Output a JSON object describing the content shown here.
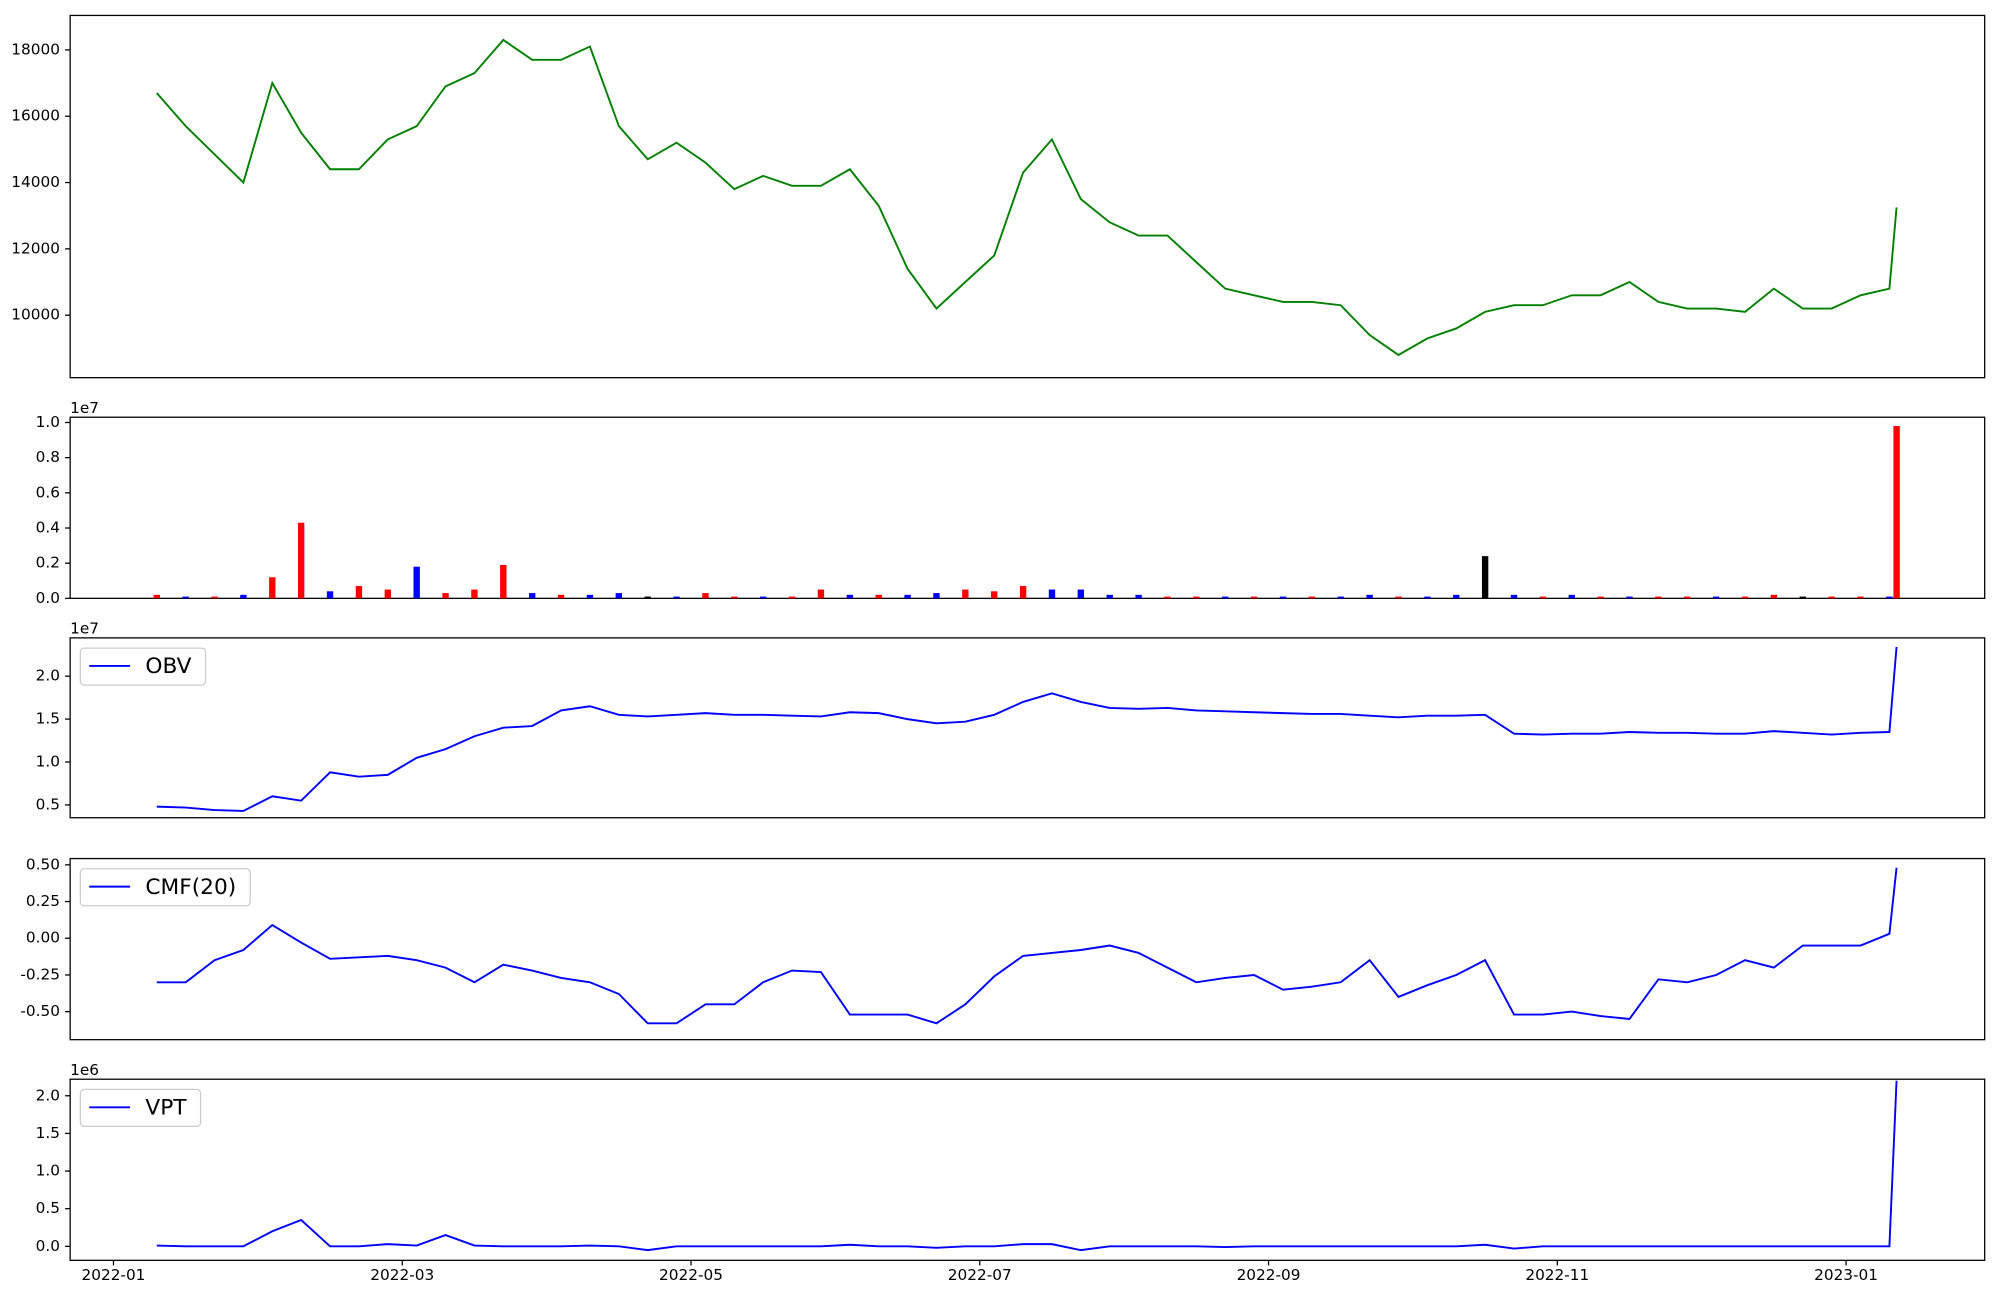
{
  "chart_data": [
    {
      "type": "line",
      "x": [
        0.3,
        0.5,
        0.7,
        0.9,
        1.1,
        1.3,
        1.5,
        1.7,
        1.9,
        2.1,
        2.3,
        2.5,
        2.7,
        2.9,
        3.1,
        3.3,
        3.5,
        3.7,
        3.9,
        4.1,
        4.3,
        4.5,
        4.7,
        4.9,
        5.1,
        5.3,
        5.5,
        5.7,
        5.9,
        6.1,
        6.3,
        6.5,
        6.7,
        6.9,
        7.1,
        7.3,
        7.5,
        7.7,
        7.9,
        8.1,
        8.3,
        8.5,
        8.7,
        8.9,
        9.1,
        9.3,
        9.5,
        9.7,
        9.9,
        10.1,
        10.3,
        10.5,
        10.7,
        10.9,
        11.1,
        11.3,
        11.5,
        11.7,
        11.9,
        12.1,
        12.3,
        12.35
      ],
      "values": [
        16700,
        15700,
        14850,
        14000,
        17000,
        15500,
        14400,
        14400,
        15300,
        15700,
        16900,
        17300,
        18300,
        17700,
        17700,
        18100,
        15700,
        14700,
        15200,
        14600,
        13800,
        14200,
        13900,
        13900,
        14400,
        13300,
        11400,
        10200,
        11000,
        11800,
        14300,
        15300,
        13500,
        12800,
        12400,
        12400,
        11600,
        10800,
        10600,
        10400,
        10400,
        10300,
        9400,
        8800,
        9300,
        9600,
        10100,
        10300,
        10300,
        10600,
        10600,
        11000,
        10400,
        10200,
        10200,
        10100,
        10800,
        10200,
        10200,
        10600,
        10800,
        13250
      ],
      "color": "green",
      "xlim": [
        -0.3,
        12.96
      ],
      "ylim": [
        8115,
        19040
      ],
      "yticks": [
        10000,
        12000,
        14000,
        16000,
        18000
      ]
    },
    {
      "type": "bar",
      "x": [
        0.3,
        0.5,
        0.7,
        0.9,
        1.1,
        1.3,
        1.5,
        1.7,
        1.9,
        2.1,
        2.3,
        2.5,
        2.7,
        2.9,
        3.1,
        3.3,
        3.5,
        3.7,
        3.9,
        4.1,
        4.3,
        4.5,
        4.7,
        4.9,
        5.1,
        5.3,
        5.5,
        5.7,
        5.9,
        6.1,
        6.3,
        6.5,
        6.7,
        6.9,
        7.1,
        7.3,
        7.5,
        7.7,
        7.9,
        8.1,
        8.3,
        8.5,
        8.7,
        8.9,
        9.1,
        9.3,
        9.5,
        9.7,
        9.9,
        10.1,
        10.3,
        10.5,
        10.7,
        10.9,
        11.1,
        11.3,
        11.5,
        11.7,
        11.9,
        12.1,
        12.3,
        12.35
      ],
      "values": [
        0.02,
        0.01,
        0.01,
        0.02,
        0.12,
        0.43,
        0.04,
        0.07,
        0.05,
        0.18,
        0.03,
        0.05,
        0.19,
        0.03,
        0.02,
        0.02,
        0.03,
        0.01,
        0.01,
        0.03,
        0.01,
        0.01,
        0.01,
        0.05,
        0.02,
        0.02,
        0.02,
        0.03,
        0.05,
        0.04,
        0.07,
        0.05,
        0.05,
        0.02,
        0.02,
        0.01,
        0.01,
        0.01,
        0.01,
        0.01,
        0.01,
        0.01,
        0.02,
        0.01,
        0.01,
        0.02,
        0.24,
        0.02,
        0.01,
        0.02,
        0.01,
        0.01,
        0.01,
        0.01,
        0.01,
        0.01,
        0.02,
        0.01,
        0.01,
        0.01,
        0.01,
        0.98
      ],
      "colors": [
        "red",
        "blue",
        "red",
        "blue",
        "red",
        "red",
        "blue",
        "red",
        "red",
        "blue",
        "red",
        "red",
        "red",
        "blue",
        "red",
        "blue",
        "blue",
        "black",
        "blue",
        "red",
        "red",
        "blue",
        "red",
        "red",
        "blue",
        "red",
        "blue",
        "blue",
        "red",
        "red",
        "red",
        "blue",
        "blue",
        "blue",
        "blue",
        "red",
        "red",
        "blue",
        "red",
        "blue",
        "red",
        "blue",
        "blue",
        "red",
        "blue",
        "blue",
        "black",
        "blue",
        "red",
        "blue",
        "red",
        "blue",
        "red",
        "red",
        "blue",
        "red",
        "red",
        "black",
        "red",
        "red",
        "blue",
        "red"
      ],
      "offset_label": "1e7",
      "xlim": [
        -0.3,
        12.96
      ],
      "ylim": [
        0,
        1.03
      ],
      "yticks": [
        {
          "value": 0,
          "label": "0.0"
        },
        {
          "value": 0.2,
          "label": "0.2"
        },
        {
          "value": 0.4,
          "label": "0.4"
        },
        {
          "value": 0.6,
          "label": "0.6"
        },
        {
          "value": 0.8,
          "label": "0.8"
        },
        {
          "value": 1,
          "label": "1.0"
        }
      ]
    },
    {
      "type": "line",
      "x": [
        0.3,
        0.5,
        0.7,
        0.9,
        1.1,
        1.3,
        1.5,
        1.7,
        1.9,
        2.1,
        2.3,
        2.5,
        2.7,
        2.9,
        3.1,
        3.3,
        3.5,
        3.7,
        3.9,
        4.1,
        4.3,
        4.5,
        4.7,
        4.9,
        5.1,
        5.3,
        5.5,
        5.7,
        5.9,
        6.1,
        6.3,
        6.5,
        6.7,
        6.9,
        7.1,
        7.3,
        7.5,
        7.7,
        7.9,
        8.1,
        8.3,
        8.5,
        8.7,
        8.9,
        9.1,
        9.3,
        9.5,
        9.7,
        9.9,
        10.1,
        10.3,
        10.5,
        10.7,
        10.9,
        11.1,
        11.3,
        11.5,
        11.7,
        11.9,
        12.1,
        12.3,
        12.35
      ],
      "series": [
        {
          "name": "OBV",
          "color": "blue",
          "values": [
            0.48,
            0.47,
            0.44,
            0.43,
            0.6,
            0.55,
            0.88,
            0.83,
            0.85,
            1.05,
            1.15,
            1.3,
            1.4,
            1.42,
            1.6,
            1.65,
            1.55,
            1.53,
            1.55,
            1.57,
            1.55,
            1.55,
            1.54,
            1.53,
            1.58,
            1.57,
            1.5,
            1.45,
            1.47,
            1.55,
            1.7,
            1.8,
            1.7,
            1.63,
            1.62,
            1.63,
            1.6,
            1.59,
            1.58,
            1.57,
            1.56,
            1.56,
            1.54,
            1.52,
            1.54,
            1.54,
            1.55,
            1.33,
            1.32,
            1.33,
            1.33,
            1.35,
            1.34,
            1.34,
            1.33,
            1.33,
            1.36,
            1.34,
            1.32,
            1.34,
            1.35,
            2.34
          ]
        }
      ],
      "legend": "upper left",
      "offset_label": "1e7",
      "xlim": [
        -0.3,
        12.96
      ],
      "ylim": [
        0.351,
        2.446
      ],
      "yticks": [
        0.5,
        {
          "value": 1,
          "label": "1.0"
        },
        1.5,
        {
          "value": 2,
          "label": "2.0"
        }
      ]
    },
    {
      "type": "line",
      "x": [
        0.3,
        0.5,
        0.7,
        0.9,
        1.1,
        1.3,
        1.5,
        1.7,
        1.9,
        2.1,
        2.3,
        2.5,
        2.7,
        2.9,
        3.1,
        3.3,
        3.5,
        3.7,
        3.9,
        4.1,
        4.3,
        4.5,
        4.7,
        4.9,
        5.1,
        5.3,
        5.5,
        5.7,
        5.9,
        6.1,
        6.3,
        6.5,
        6.7,
        6.9,
        7.1,
        7.3,
        7.5,
        7.7,
        7.9,
        8.1,
        8.3,
        8.5,
        8.7,
        8.9,
        9.1,
        9.3,
        9.5,
        9.7,
        9.9,
        10.1,
        10.3,
        10.5,
        10.7,
        10.9,
        11.1,
        11.3,
        11.5,
        11.7,
        11.9,
        12.1,
        12.3,
        12.35
      ],
      "series": [
        {
          "name": "CMF(20)",
          "color": "blue",
          "values": [
            -0.3,
            -0.3,
            -0.15,
            -0.08,
            0.09,
            -0.03,
            -0.14,
            -0.13,
            -0.12,
            -0.15,
            -0.2,
            -0.3,
            -0.18,
            -0.22,
            -0.27,
            -0.3,
            -0.38,
            -0.58,
            -0.58,
            -0.45,
            -0.45,
            -0.3,
            -0.22,
            -0.23,
            -0.52,
            -0.52,
            -0.52,
            -0.58,
            -0.45,
            -0.26,
            -0.12,
            -0.1,
            -0.08,
            -0.05,
            -0.1,
            -0.2,
            -0.3,
            -0.27,
            -0.25,
            -0.35,
            -0.33,
            -0.3,
            -0.15,
            -0.4,
            -0.32,
            -0.25,
            -0.15,
            -0.52,
            -0.52,
            -0.5,
            -0.53,
            -0.55,
            -0.28,
            -0.3,
            -0.25,
            -0.15,
            -0.2,
            -0.05,
            -0.05,
            -0.05,
            0.03,
            0.48
          ]
        }
      ],
      "legend": "upper left",
      "xlim": [
        -0.3,
        12.96
      ],
      "ylim": [
        -0.691,
        0.543
      ],
      "yticks": [
        {
          "value": -0.5,
          "label": "-0.50"
        },
        {
          "value": -0.25,
          "label": "-0.25"
        },
        {
          "value": 0,
          "label": "0.00"
        },
        0.25,
        {
          "value": 0.5,
          "label": "0.50"
        }
      ]
    },
    {
      "type": "line",
      "x": [
        0.3,
        0.5,
        0.7,
        0.9,
        1.1,
        1.3,
        1.5,
        1.7,
        1.9,
        2.1,
        2.3,
        2.5,
        2.7,
        2.9,
        3.1,
        3.3,
        3.5,
        3.7,
        3.9,
        4.1,
        4.3,
        4.5,
        4.7,
        4.9,
        5.1,
        5.3,
        5.5,
        5.7,
        5.9,
        6.1,
        6.3,
        6.5,
        6.7,
        6.9,
        7.1,
        7.3,
        7.5,
        7.7,
        7.9,
        8.1,
        8.3,
        8.5,
        8.7,
        8.9,
        9.1,
        9.3,
        9.5,
        9.7,
        9.9,
        10.1,
        10.3,
        10.5,
        10.7,
        10.9,
        11.1,
        11.3,
        11.5,
        11.7,
        11.9,
        12.1,
        12.3,
        12.35
      ],
      "series": [
        {
          "name": "VPT",
          "color": "blue",
          "values": [
            0.01,
            0,
            0,
            0,
            0.2,
            0.35,
            0,
            0,
            0.03,
            0.01,
            0.15,
            0.01,
            0,
            0,
            0,
            0.01,
            0,
            -0.05,
            0,
            0,
            0,
            0,
            0,
            0,
            0.02,
            0,
            0,
            -0.02,
            0,
            0,
            0.03,
            0.03,
            -0.05,
            0,
            0,
            0,
            0,
            -0.01,
            0,
            0,
            0,
            0,
            0,
            0,
            0,
            0,
            0.02,
            -0.03,
            0,
            0,
            0,
            0,
            0,
            0,
            0,
            0,
            0,
            0,
            0,
            0,
            0,
            2.2
          ]
        }
      ],
      "legend": "upper left",
      "offset_label": "1e6",
      "xlim": [
        -0.3,
        12.96
      ],
      "ylim": [
        -0.186,
        2.22
      ],
      "yticks": [
        {
          "value": 0,
          "label": "0.0"
        },
        0.5,
        {
          "value": 1,
          "label": "1.0"
        },
        1.5,
        {
          "value": 2,
          "label": "2.0"
        }
      ],
      "xticks": [
        {
          "value": 0,
          "label": "2022-01"
        },
        {
          "value": 2,
          "label": "2022-03"
        },
        {
          "value": 4,
          "label": "2022-05"
        },
        {
          "value": 6,
          "label": "2022-07"
        },
        {
          "value": 8,
          "label": "2022-09"
        },
        {
          "value": 10,
          "label": "2022-11"
        },
        {
          "value": 12,
          "label": "2023-01"
        }
      ]
    }
  ]
}
